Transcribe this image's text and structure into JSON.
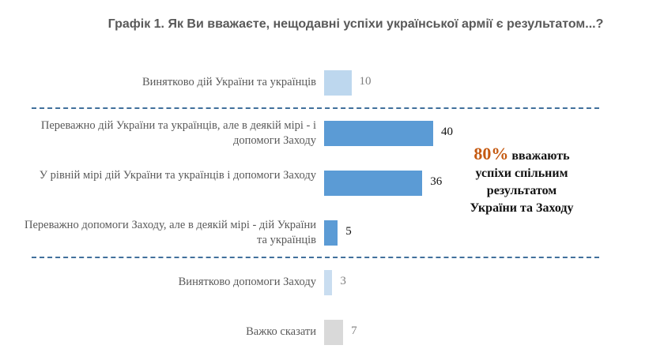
{
  "chart_data": {
    "type": "bar",
    "title": "Графік 1. Як Ви вважаєте, нещодавні успіхи української армії є результатом...?",
    "categories": [
      "Винятково дій України та українців",
      "Переважно дій України та українців, але в деякій мірі - і допомоги Заходу",
      "У рівній мірі дій України та українців і допомоги Заходу",
      "Переважно допомоги Заходу, але в деякій мірі - дій України та українців",
      "Винятково допомоги Заходу",
      "Важко сказати"
    ],
    "values": [
      10,
      40,
      36,
      5,
      3,
      7
    ],
    "value_labels": [
      "10",
      "40",
      "36",
      "5",
      "3",
      "7"
    ],
    "colors": [
      "#bdd7ee",
      "#5b9bd5",
      "#5b9bd5",
      "#5b9bd5",
      "#c9ddf0",
      "#d9d9d9"
    ],
    "label_colors": [
      "#7f7f7f",
      "#111111",
      "#111111",
      "#111111",
      "#7f7f7f",
      "#7f7f7f"
    ],
    "xlim": [
      0,
      100
    ],
    "annotation": {
      "pct": "80%",
      "text": "вважають",
      "line2": "успіхи спільним",
      "line3": "результатом",
      "line4": "України та Заходу"
    }
  }
}
